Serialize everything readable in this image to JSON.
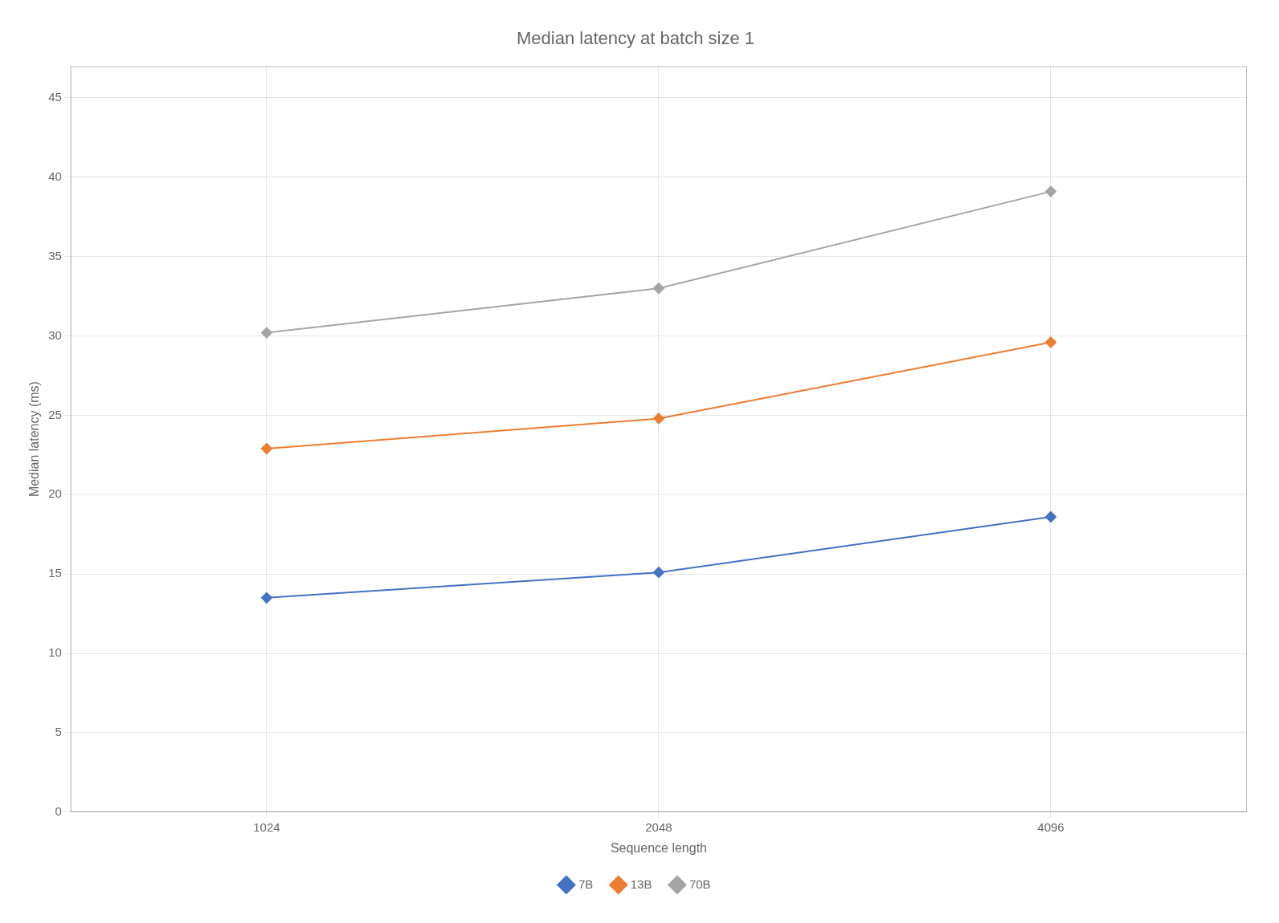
{
  "chart_data": {
    "type": "line",
    "title": "Median latency at batch size 1",
    "xlabel": "Sequence length",
    "ylabel": "Median latency (ms)",
    "categories": [
      "1024",
      "2048",
      "4096"
    ],
    "series": [
      {
        "name": "7B",
        "color": "#4472c4",
        "marker": "diamond",
        "values": [
          13.5,
          15.1,
          18.6
        ]
      },
      {
        "name": "13B",
        "color": "#ed7d31",
        "marker": "diamond",
        "values": [
          22.9,
          24.8,
          29.6
        ]
      },
      {
        "name": "70B",
        "color": "#a5a5a5",
        "marker": "diamond",
        "values": [
          30.2,
          33.0,
          39.1
        ]
      }
    ],
    "ylim": [
      0,
      47
    ],
    "yticks": [
      0,
      5,
      10,
      15,
      20,
      25,
      30,
      35,
      40,
      45
    ],
    "grid": true,
    "legend": "bottom"
  }
}
